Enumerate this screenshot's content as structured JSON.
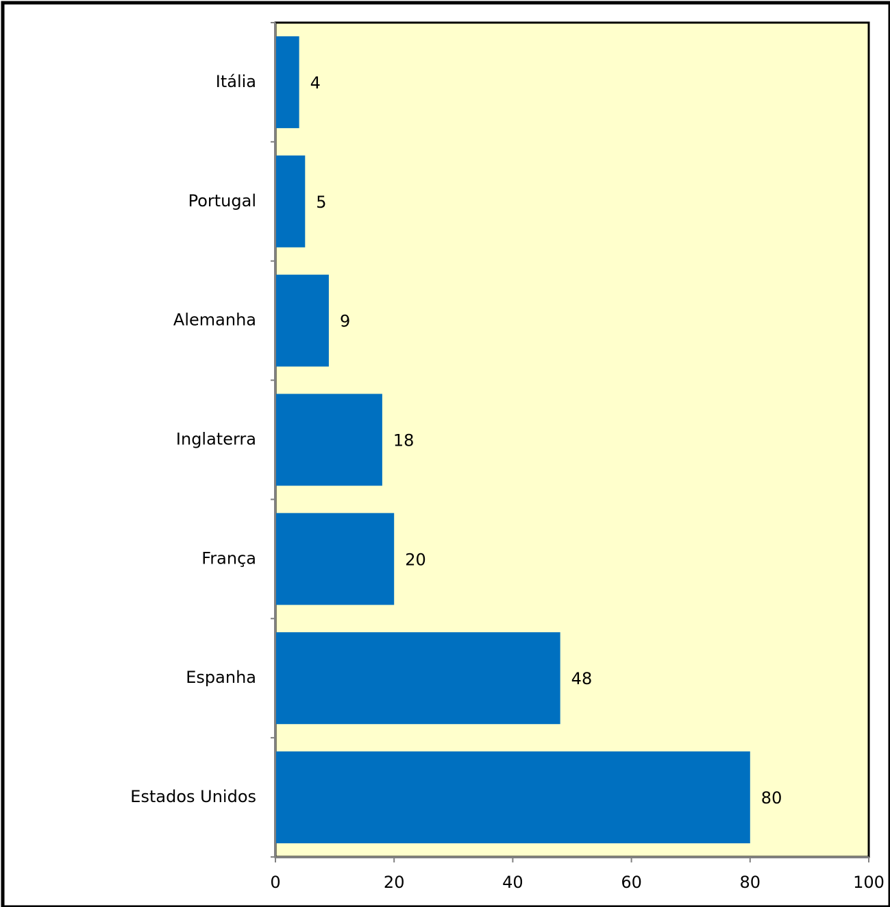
{
  "chart_data": {
    "type": "bar",
    "orientation": "horizontal",
    "categories": [
      "Itália",
      "Portugal",
      "Alemanha",
      "Inglaterra",
      "França",
      "Espanha",
      "Estados Unidos"
    ],
    "values": [
      4,
      5,
      9,
      18,
      20,
      48,
      80
    ],
    "data_labels": [
      "4",
      "5",
      "9",
      "18",
      "20",
      "48",
      "80"
    ],
    "xlim": [
      0,
      100
    ],
    "x_ticks": [
      0,
      20,
      40,
      60,
      80,
      100
    ],
    "x_tick_labels": [
      "0",
      "20",
      "40",
      "60",
      "80",
      "100"
    ],
    "title": "",
    "xlabel": "",
    "ylabel": "",
    "grid": false,
    "legend": "none",
    "colors": {
      "bar": "#0070C0",
      "plot_background": "#FFFFCC",
      "frame": "#000000",
      "axis": "#808080"
    }
  }
}
